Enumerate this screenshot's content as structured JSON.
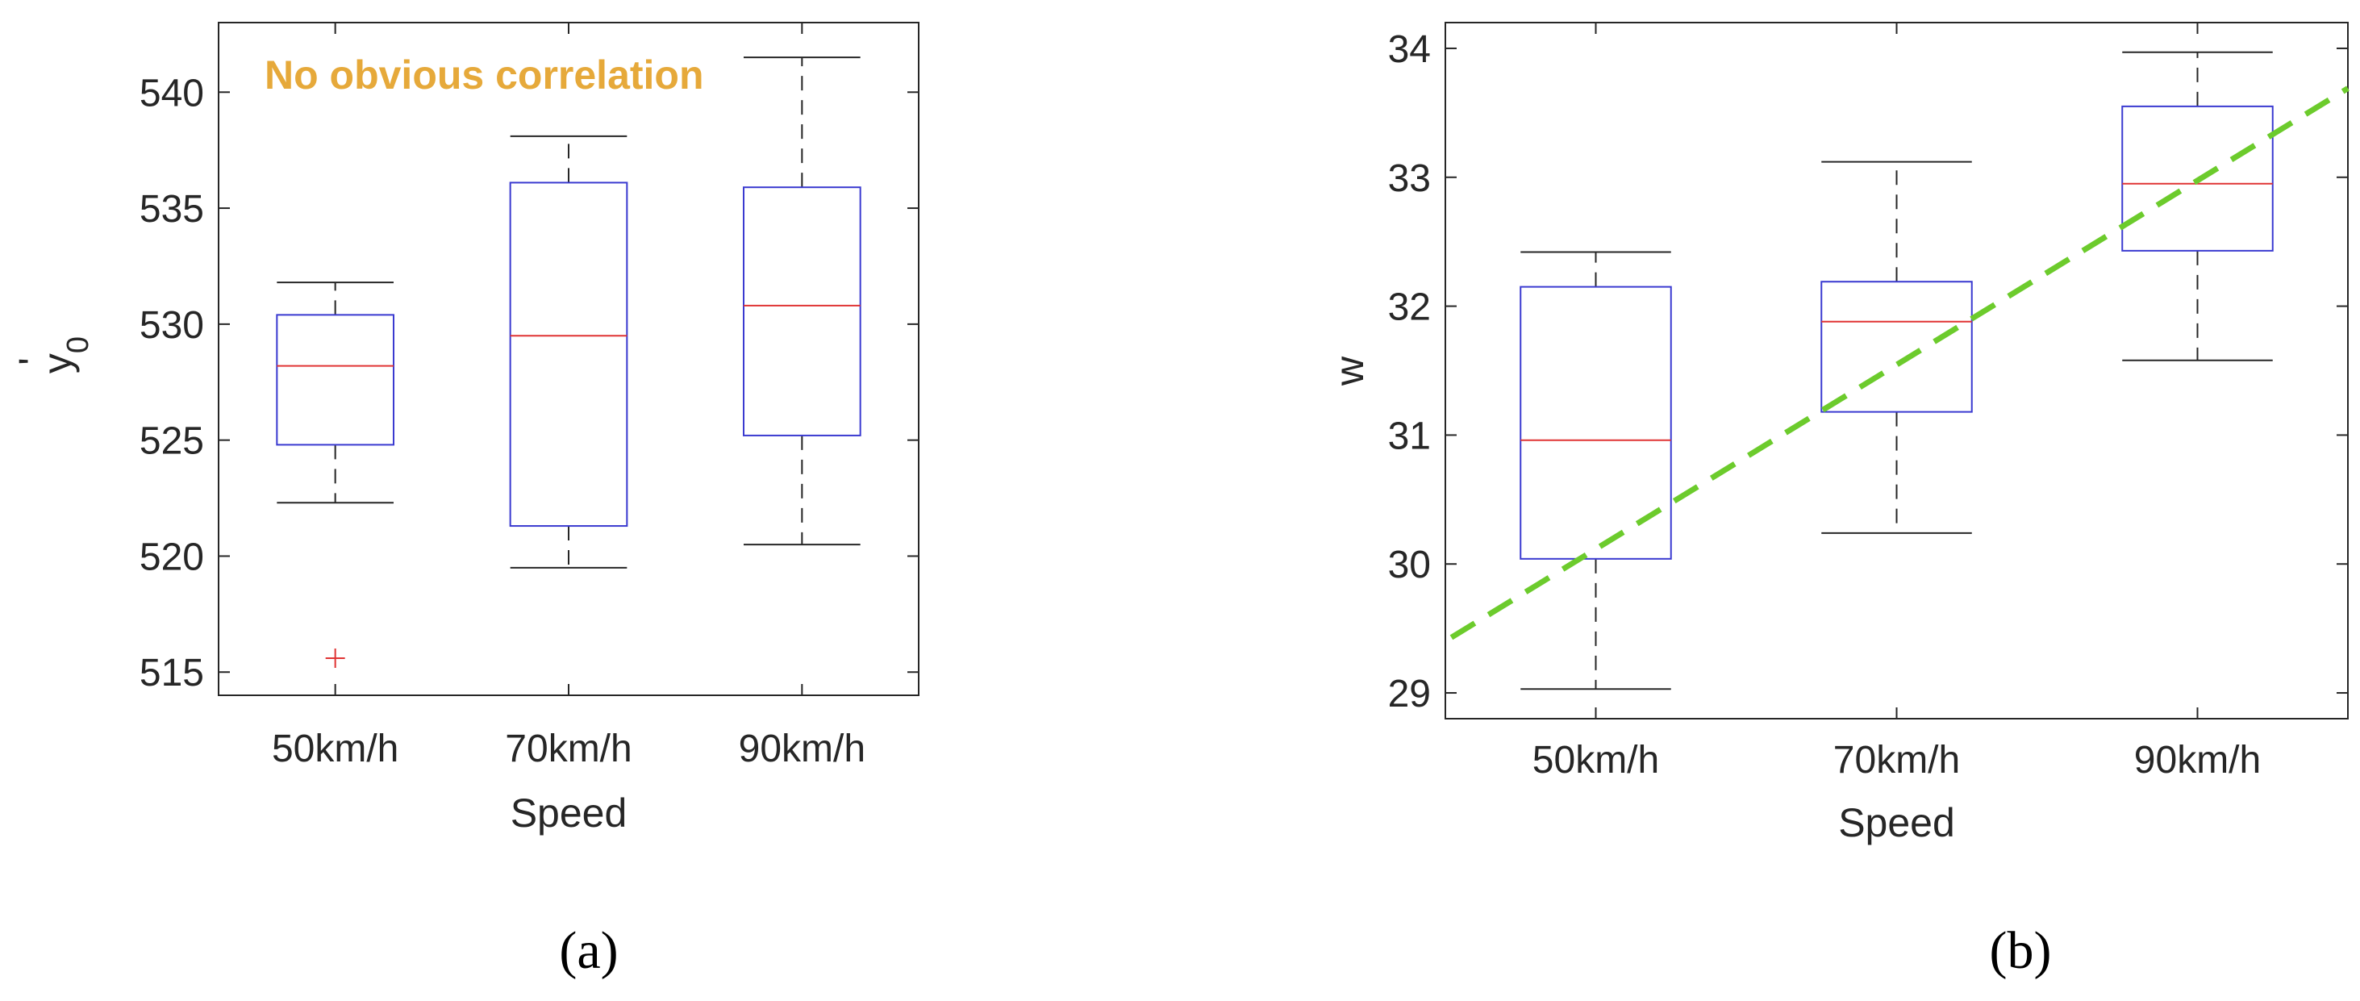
{
  "chart_data": [
    {
      "type": "box",
      "panel_label": "(a)",
      "xlabel": "Speed",
      "ylabel": "y'0",
      "categories": [
        "50km/h",
        "70km/h",
        "90km/h"
      ],
      "ylim": [
        514,
        543
      ],
      "yticks": [
        515,
        520,
        525,
        530,
        535,
        540
      ],
      "annotation": "No obvious correlation",
      "boxes": [
        {
          "category": "50km/h",
          "whisker_low": 522.3,
          "q1": 524.8,
          "median": 528.2,
          "q3": 530.4,
          "whisker_high": 531.8,
          "outliers": [
            515.6
          ]
        },
        {
          "category": "70km/h",
          "whisker_low": 519.5,
          "q1": 521.3,
          "median": 529.5,
          "q3": 536.1,
          "whisker_high": 538.1,
          "outliers": []
        },
        {
          "category": "90km/h",
          "whisker_low": 520.5,
          "q1": 525.2,
          "median": 530.8,
          "q3": 535.9,
          "whisker_high": 541.5,
          "outliers": []
        }
      ]
    },
    {
      "type": "box",
      "panel_label": "(b)",
      "xlabel": "Speed",
      "ylabel": "w",
      "categories": [
        "50km/h",
        "70km/h",
        "90km/h"
      ],
      "ylim": [
        28.8,
        34.2
      ],
      "yticks": [
        29,
        30,
        31,
        32,
        33,
        34
      ],
      "boxes": [
        {
          "category": "50km/h",
          "whisker_low": 29.03,
          "q1": 30.04,
          "median": 30.96,
          "q3": 32.15,
          "whisker_high": 32.42,
          "outliers": []
        },
        {
          "category": "70km/h",
          "whisker_low": 30.24,
          "q1": 31.18,
          "median": 31.88,
          "q3": 32.19,
          "whisker_high": 33.12,
          "outliers": []
        },
        {
          "category": "90km/h",
          "whisker_low": 31.58,
          "q1": 32.43,
          "median": 32.95,
          "q3": 33.55,
          "whisker_high": 33.97,
          "outliers": []
        }
      ],
      "trend_line": {
        "style": "dashed",
        "x_start": 0.52,
        "y_start": 29.43,
        "x_end": 3.5,
        "y_end": 33.69
      }
    }
  ],
  "colors": {
    "box": "#3a3ad0",
    "median": "#e03434",
    "whisker": "#262626",
    "outlier": "#e03434",
    "annotation": "#e6a93a",
    "trend": "#6ccb2c",
    "axis": "#262626"
  }
}
